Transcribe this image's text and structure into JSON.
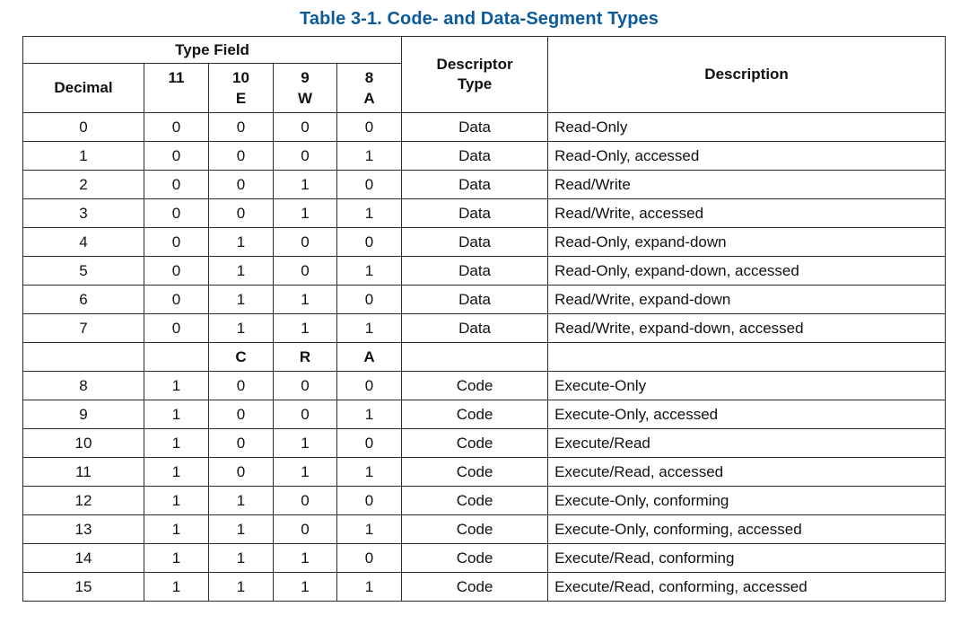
{
  "title": "Table 3-1.  Code- and Data-Segment Types",
  "headers": {
    "type_field": "Type Field",
    "decimal": "Decimal",
    "bit11": "11",
    "bit10": "10",
    "bit10_letter": "E",
    "bit9": "9",
    "bit9_letter": "W",
    "bit8": "8",
    "bit8_letter": "A",
    "descriptor_type_line1": "Descriptor",
    "descriptor_type_line2": "Type",
    "description": "Description"
  },
  "code_subheader": {
    "bit10_letter": "C",
    "bit9_letter": "R",
    "bit8_letter": "A"
  },
  "data_rows": [
    {
      "decimal": "0",
      "b11": "0",
      "b10": "0",
      "b9": "0",
      "b8": "0",
      "type": "Data",
      "description": "Read-Only"
    },
    {
      "decimal": "1",
      "b11": "0",
      "b10": "0",
      "b9": "0",
      "b8": "1",
      "type": "Data",
      "description": "Read-Only, accessed"
    },
    {
      "decimal": "2",
      "b11": "0",
      "b10": "0",
      "b9": "1",
      "b8": "0",
      "type": "Data",
      "description": "Read/Write"
    },
    {
      "decimal": "3",
      "b11": "0",
      "b10": "0",
      "b9": "1",
      "b8": "1",
      "type": "Data",
      "description": "Read/Write, accessed"
    },
    {
      "decimal": "4",
      "b11": "0",
      "b10": "1",
      "b9": "0",
      "b8": "0",
      "type": "Data",
      "description": "Read-Only, expand-down"
    },
    {
      "decimal": "5",
      "b11": "0",
      "b10": "1",
      "b9": "0",
      "b8": "1",
      "type": "Data",
      "description": "Read-Only, expand-down, accessed"
    },
    {
      "decimal": "6",
      "b11": "0",
      "b10": "1",
      "b9": "1",
      "b8": "0",
      "type": "Data",
      "description": "Read/Write, expand-down"
    },
    {
      "decimal": "7",
      "b11": "0",
      "b10": "1",
      "b9": "1",
      "b8": "1",
      "type": "Data",
      "description": "Read/Write, expand-down, accessed"
    }
  ],
  "code_rows": [
    {
      "decimal": "8",
      "b11": "1",
      "b10": "0",
      "b9": "0",
      "b8": "0",
      "type": "Code",
      "description": "Execute-Only"
    },
    {
      "decimal": "9",
      "b11": "1",
      "b10": "0",
      "b9": "0",
      "b8": "1",
      "type": "Code",
      "description": "Execute-Only, accessed"
    },
    {
      "decimal": "10",
      "b11": "1",
      "b10": "0",
      "b9": "1",
      "b8": "0",
      "type": "Code",
      "description": "Execute/Read"
    },
    {
      "decimal": "11",
      "b11": "1",
      "b10": "0",
      "b9": "1",
      "b8": "1",
      "type": "Code",
      "description": "Execute/Read, accessed"
    },
    {
      "decimal": "12",
      "b11": "1",
      "b10": "1",
      "b9": "0",
      "b8": "0",
      "type": "Code",
      "description": "Execute-Only, conforming"
    },
    {
      "decimal": "13",
      "b11": "1",
      "b10": "1",
      "b9": "0",
      "b8": "1",
      "type": "Code",
      "description": "Execute-Only, conforming, accessed"
    },
    {
      "decimal": "14",
      "b11": "1",
      "b10": "1",
      "b9": "1",
      "b8": "0",
      "type": "Code",
      "description": "Execute/Read, conforming"
    },
    {
      "decimal": "15",
      "b11": "1",
      "b10": "1",
      "b9": "1",
      "b8": "1",
      "type": "Code",
      "description": "Execute/Read, conforming, accessed"
    }
  ],
  "colors": {
    "title": "#0a5a9c",
    "border": "#2b2b2b",
    "text": "#111111"
  }
}
